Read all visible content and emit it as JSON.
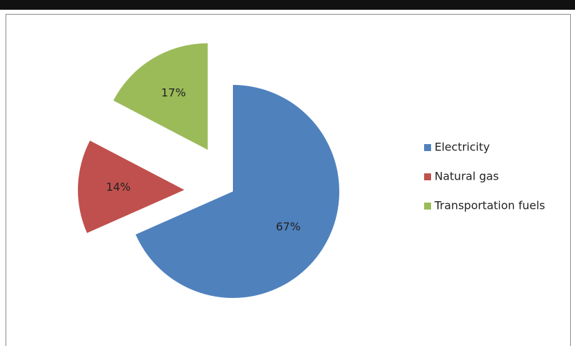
{
  "chart_data": {
    "type": "pie",
    "categories": [
      "Electricity",
      "Natural gas",
      "Transportation fuels"
    ],
    "values": [
      67,
      14,
      17
    ],
    "value_labels": [
      "67%",
      "14%",
      "17%"
    ],
    "colors": [
      "#4f81bd",
      "#c0504d",
      "#9bbb59"
    ],
    "legend": "right"
  }
}
